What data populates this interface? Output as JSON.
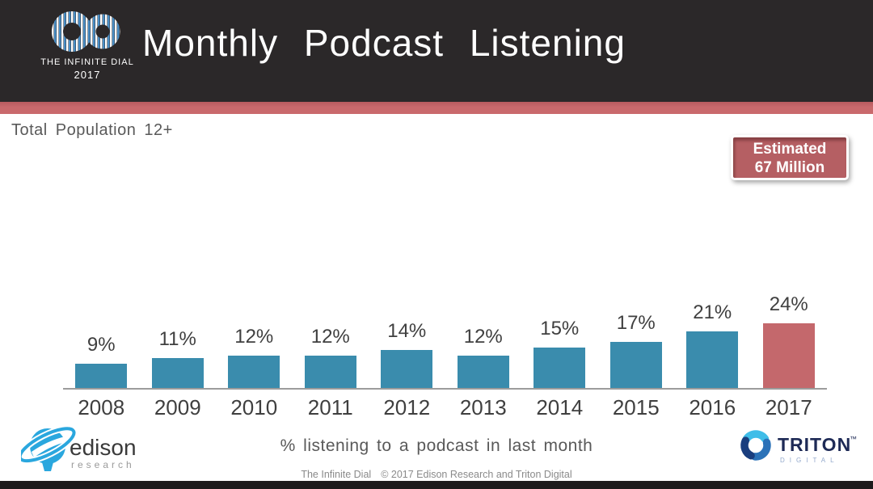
{
  "header": {
    "brand": {
      "logo": "infinite-dial-infinity-logo",
      "line1": "THE INFINITE DIAL",
      "line2": "2017"
    },
    "title": "Monthly Podcast Listening"
  },
  "body": {
    "subtitle": "Total Population 12+",
    "badge": {
      "line1": "Estimated",
      "line2": "67 Million"
    },
    "caption": "% listening to a podcast in last month"
  },
  "chart_data": {
    "type": "bar",
    "title": "Monthly Podcast Listening",
    "subtitle": "Total Population 12+",
    "categories": [
      "2008",
      "2009",
      "2010",
      "2011",
      "2012",
      "2013",
      "2014",
      "2015",
      "2016",
      "2017"
    ],
    "values": [
      9,
      11,
      12,
      12,
      14,
      12,
      15,
      17,
      21,
      24
    ],
    "value_labels": [
      "9%",
      "11%",
      "12%",
      "12%",
      "14%",
      "12%",
      "15%",
      "17%",
      "21%",
      "24%"
    ],
    "unit": "percent of population 12+",
    "xlabel": "% listening to a podcast in last month",
    "ylabel": "",
    "ylim": [
      0,
      26
    ],
    "grid": false,
    "legend": false,
    "bar_color": "#3A8CAD",
    "highlight_index": 9,
    "highlight_color": "#C4686C",
    "annotation": "Estimated 67 Million"
  },
  "footer": {
    "left": "The Infinite Dial",
    "right": "© 2017 Edison Research and Triton Digital"
  },
  "logos": {
    "edison": {
      "name": "edison",
      "sub": "research"
    },
    "triton": {
      "name": "TRITON",
      "tm": "™",
      "sub": "DIGITAL"
    }
  },
  "colors": {
    "header_bg": "#2B2829",
    "stripe": "#C9696C",
    "bar_teal": "#3A8CAD",
    "bar_red": "#C4686C",
    "badge_bg": "#B55F63",
    "axis": "#9C9C9C",
    "text_dark": "#3F3F3F",
    "text_mid": "#595959",
    "footer_text": "#8A8A8A",
    "bottom_bar": "#1D1B1C",
    "logo_blue": "#4A8FC7",
    "edison_blue": "#2AA7DE",
    "triton_navy": "#1E2A56"
  }
}
